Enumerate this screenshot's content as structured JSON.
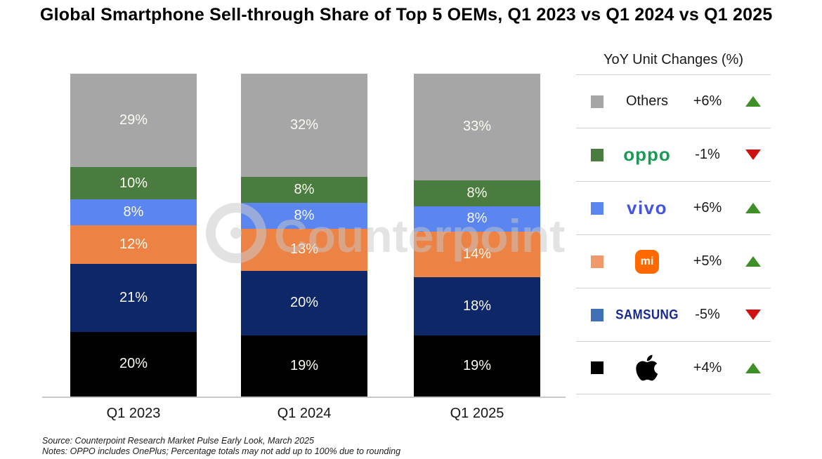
{
  "title": "Global Smartphone Sell-through Share of Top 5 OEMs, Q1 2023 vs Q1 2024 vs Q1 2025",
  "watermark": {
    "text": "Counterpoint"
  },
  "chart_data": {
    "type": "bar",
    "stacked": true,
    "title": "Global Smartphone Sell-through Share of Top 5 OEMs, Q1 2023 vs Q1 2024 vs Q1 2025",
    "categories": [
      "Q1 2023",
      "Q1 2024",
      "Q1 2025"
    ],
    "series": [
      {
        "name": "Others",
        "color": "#a6a6a6",
        "values": [
          29,
          32,
          33
        ]
      },
      {
        "name": "OPPO",
        "color": "#4a7b3f",
        "values": [
          10,
          8,
          8
        ]
      },
      {
        "name": "vivo",
        "color": "#5b86f0",
        "values": [
          8,
          8,
          8
        ]
      },
      {
        "name": "Xiaomi",
        "color": "#ed8245",
        "values": [
          12,
          13,
          14
        ]
      },
      {
        "name": "Samsung",
        "color": "#0d2768",
        "values": [
          21,
          20,
          18
        ]
      },
      {
        "name": "Apple",
        "color": "#010101",
        "values": [
          20,
          19,
          19
        ]
      }
    ],
    "value_suffix": "%",
    "ylim": [
      0,
      100
    ],
    "grid": false,
    "xlabel": "",
    "ylabel": "",
    "legend_position": "right"
  },
  "legend": {
    "title": "YoY Unit Changes (%)",
    "up_color": "#3f8f29",
    "down_color": "#d01111",
    "rows": [
      {
        "name": "Others",
        "logo_type": "plain",
        "logo_text": "Others",
        "swatch": "#a6a6a6",
        "change": "+6%",
        "direction": "up"
      },
      {
        "name": "OPPO",
        "logo_type": "oppo",
        "logo_text": "oppo",
        "swatch": "#4a7b3f",
        "change": "-1%",
        "direction": "down"
      },
      {
        "name": "vivo",
        "logo_type": "vivo",
        "logo_text": "vivo",
        "swatch": "#5b86f0",
        "change": "+6%",
        "direction": "up"
      },
      {
        "name": "Xiaomi",
        "logo_type": "mi",
        "logo_text": "mi",
        "swatch": "#f0996a",
        "change": "+5%",
        "direction": "up"
      },
      {
        "name": "Samsung",
        "logo_type": "samsung",
        "logo_text": "SAMSUNG",
        "swatch": "#3e70b3",
        "change": "-5%",
        "direction": "down"
      },
      {
        "name": "Apple",
        "logo_type": "apple",
        "logo_text": "",
        "swatch": "#010101",
        "change": "+4%",
        "direction": "up"
      }
    ]
  },
  "footer": {
    "source": "Source: Counterpoint Research Market Pulse Early Look, March 2025",
    "notes": "Notes: OPPO includes OnePlus; Percentage totals may not add up to 100% due to rounding"
  }
}
